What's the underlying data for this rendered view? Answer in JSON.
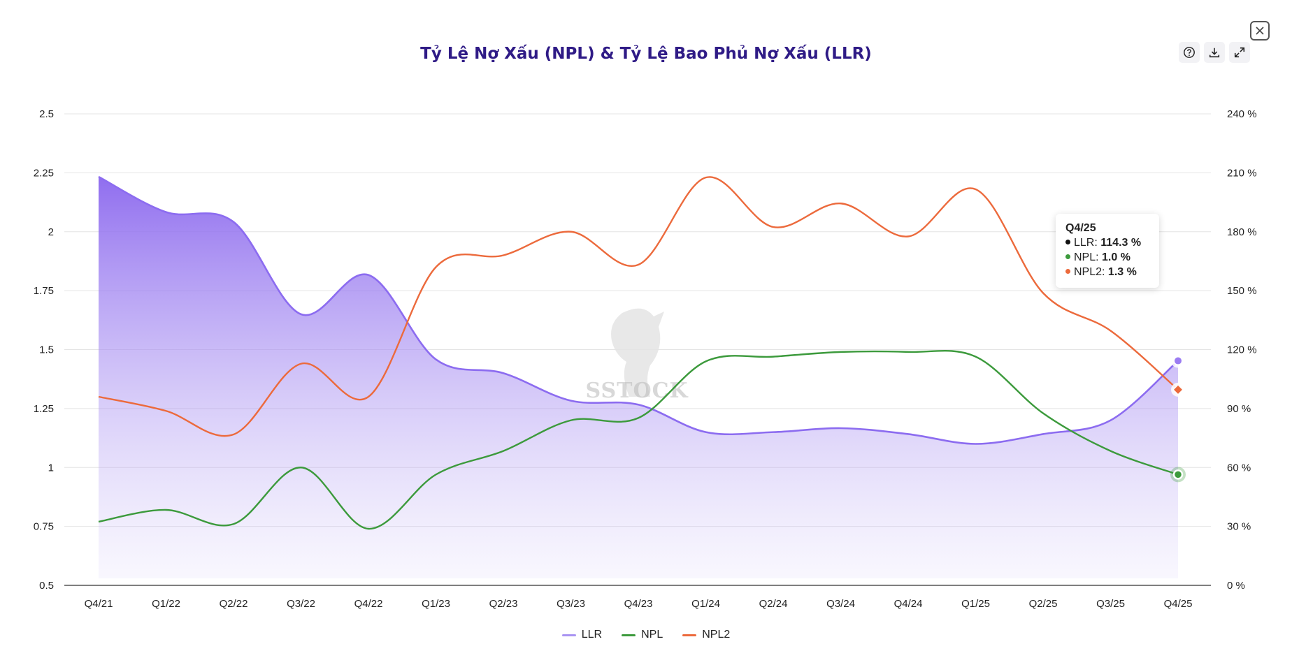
{
  "chart_data": {
    "type": "line",
    "title": "Tỷ Lệ Nợ Xấu (NPL) & Tỷ Lệ Bao Phủ Nợ Xấu (LLR)",
    "categories": [
      "Q4/21",
      "Q1/22",
      "Q2/22",
      "Q3/22",
      "Q4/22",
      "Q1/23",
      "Q2/23",
      "Q3/23",
      "Q4/23",
      "Q1/24",
      "Q2/24",
      "Q3/24",
      "Q4/24",
      "Q1/25",
      "Q2/25",
      "Q3/25",
      "Q4/25"
    ],
    "y_left": {
      "ticks": [
        "0.5",
        "0.75",
        "1",
        "1.25",
        "1.5",
        "1.75",
        "2",
        "2.25",
        "2.5"
      ],
      "min": 0.5,
      "max": 2.5
    },
    "y_right": {
      "ticks": [
        "0 %",
        "30 %",
        "60 %",
        "90 %",
        "120 %",
        "150 %",
        "180 %",
        "210 %",
        "240 %"
      ],
      "min": 0,
      "max": 240
    },
    "grid": true,
    "series": [
      {
        "name": "LLR",
        "axis": "right",
        "style": "area",
        "color": "#8c6cf0",
        "values": [
          208,
          190,
          185,
          138,
          158,
          115,
          108,
          94,
          92,
          78,
          78,
          80,
          77,
          72,
          77,
          84,
          114.3
        ]
      },
      {
        "name": "NPL",
        "axis": "left",
        "style": "line",
        "color": "#3c9a3c",
        "values": [
          0.77,
          0.82,
          0.76,
          1.0,
          0.74,
          0.97,
          1.07,
          1.2,
          1.21,
          1.45,
          1.47,
          1.49,
          1.49,
          1.47,
          1.23,
          1.07,
          0.97
        ]
      },
      {
        "name": "NPL2",
        "axis": "left",
        "style": "line",
        "color": "#ec6a3c",
        "values": [
          1.3,
          1.24,
          1.14,
          1.44,
          1.3,
          1.85,
          1.9,
          2.0,
          1.86,
          2.23,
          2.02,
          2.12,
          1.98,
          2.18,
          1.74,
          1.58,
          1.33
        ]
      }
    ],
    "legend_position": "bottom-center",
    "tooltip": {
      "label": "Q4/25",
      "rows": [
        {
          "name": "LLR",
          "value": "114.3 %",
          "color": "#111111"
        },
        {
          "name": "NPL",
          "value": "1.0 %",
          "color": "#3c9a3c"
        },
        {
          "name": "NPL2",
          "value": "1.3 %",
          "color": "#ec6a3c"
        }
      ]
    },
    "watermark": "SSTOCK"
  },
  "toolbar": {
    "help_icon": "help-icon",
    "download_icon": "download-icon",
    "expand_icon": "expand-icon",
    "close_icon": "collapse-icon"
  },
  "colors": {
    "title": "#2f1b86",
    "grid": "#e4e4e4",
    "axis": "#222222"
  }
}
